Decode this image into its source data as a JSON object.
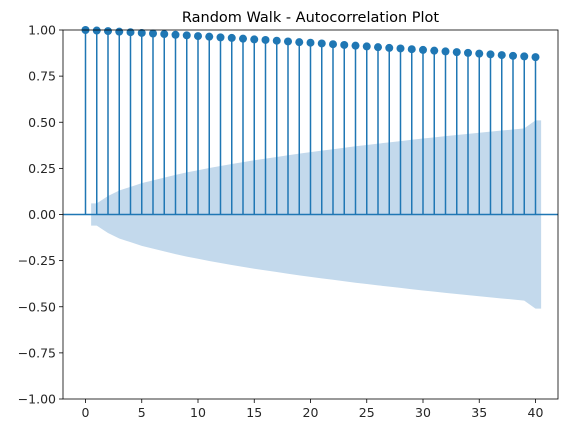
{
  "chart_data": {
    "type": "stem",
    "title": "Random Walk - Autocorrelation Plot",
    "xlabel": "",
    "ylabel": "",
    "xlim": [
      -2,
      42
    ],
    "ylim": [
      -1.0,
      1.0
    ],
    "x_ticks": [
      0,
      5,
      10,
      15,
      20,
      25,
      30,
      35,
      40
    ],
    "x_tick_labels": [
      "0",
      "5",
      "10",
      "15",
      "20",
      "25",
      "30",
      "35",
      "40"
    ],
    "y_ticks": [
      -1.0,
      -0.75,
      -0.5,
      -0.25,
      0.0,
      0.25,
      0.5,
      0.75,
      1.0
    ],
    "y_tick_labels": [
      "−1.00",
      "−0.75",
      "−0.50",
      "−0.25",
      "0.00",
      "0.25",
      "0.50",
      "0.75",
      "1.00"
    ],
    "grid": false,
    "lags": [
      0,
      1,
      2,
      3,
      4,
      5,
      6,
      7,
      8,
      9,
      10,
      11,
      12,
      13,
      14,
      15,
      16,
      17,
      18,
      19,
      20,
      21,
      22,
      23,
      24,
      25,
      26,
      27,
      28,
      29,
      30,
      31,
      32,
      33,
      34,
      35,
      36,
      37,
      38,
      39,
      40
    ],
    "acf": [
      1.0,
      0.997,
      0.994,
      0.991,
      0.988,
      0.984,
      0.981,
      0.978,
      0.974,
      0.971,
      0.967,
      0.964,
      0.96,
      0.957,
      0.953,
      0.949,
      0.946,
      0.942,
      0.938,
      0.934,
      0.931,
      0.927,
      0.923,
      0.919,
      0.915,
      0.911,
      0.907,
      0.903,
      0.9,
      0.896,
      0.892,
      0.888,
      0.884,
      0.88,
      0.876,
      0.872,
      0.868,
      0.864,
      0.86,
      0.857,
      0.853
    ],
    "confidence_band": {
      "x": [
        0.5,
        1,
        2,
        3,
        4,
        5,
        6,
        7,
        8,
        9,
        10,
        11,
        12,
        13,
        14,
        15,
        16,
        17,
        18,
        19,
        20,
        21,
        22,
        23,
        24,
        25,
        26,
        27,
        28,
        29,
        30,
        31,
        32,
        33,
        34,
        35,
        36,
        37,
        38,
        39,
        40,
        40.5
      ],
      "upper": [
        0.06,
        0.06,
        0.1,
        0.13,
        0.15,
        0.17,
        0.185,
        0.2,
        0.215,
        0.228,
        0.24,
        0.252,
        0.263,
        0.274,
        0.284,
        0.294,
        0.303,
        0.312,
        0.321,
        0.33,
        0.338,
        0.346,
        0.354,
        0.362,
        0.37,
        0.377,
        0.384,
        0.391,
        0.398,
        0.405,
        0.412,
        0.418,
        0.425,
        0.431,
        0.437,
        0.443,
        0.449,
        0.455,
        0.461,
        0.467,
        0.51,
        0.51
      ]
    },
    "colors": {
      "stem": "#1f77b4",
      "band": "#c3d9ec",
      "zero_line": "#1f77b4"
    }
  }
}
